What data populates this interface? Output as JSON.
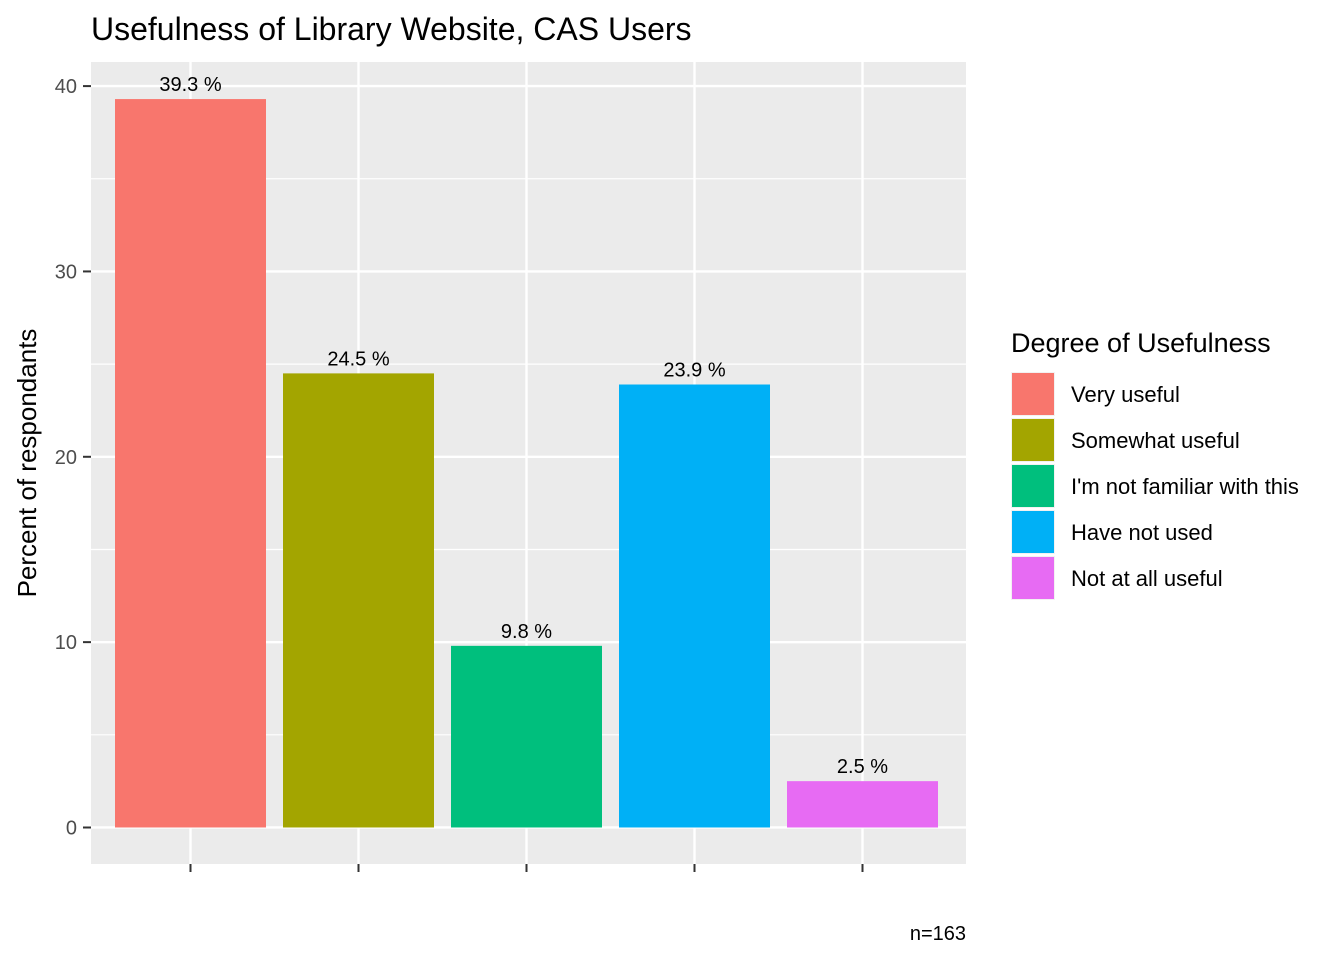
{
  "chart_data": {
    "type": "bar",
    "title": "Usefulness of Library Website,  CAS Users",
    "ylabel": "Percent of respondants",
    "xlabel": "",
    "ylim": [
      -1.97,
      41.3
    ],
    "yticks": [
      0,
      10,
      20,
      30,
      40
    ],
    "grid": true,
    "categories": [
      "Very useful",
      "Somewhat useful",
      "I'm not familiar with this",
      "Have not used",
      "Not at all useful"
    ],
    "values": [
      39.3,
      24.5,
      9.8,
      23.9,
      2.5
    ],
    "data_labels": [
      "39.3 %",
      "24.5 %",
      "9.8 %",
      "23.9 %",
      "2.5 %"
    ],
    "colors": [
      "#F8766D",
      "#A3A500",
      "#00BF7D",
      "#00B0F6",
      "#E76BF3"
    ],
    "legend": {
      "title": "Degree of Usefulness",
      "placement": "right",
      "entries": [
        "Very useful",
        "Somewhat useful",
        "I'm not familiar with this",
        "Have not used",
        "Not at all useful"
      ]
    },
    "caption": "n=163"
  }
}
